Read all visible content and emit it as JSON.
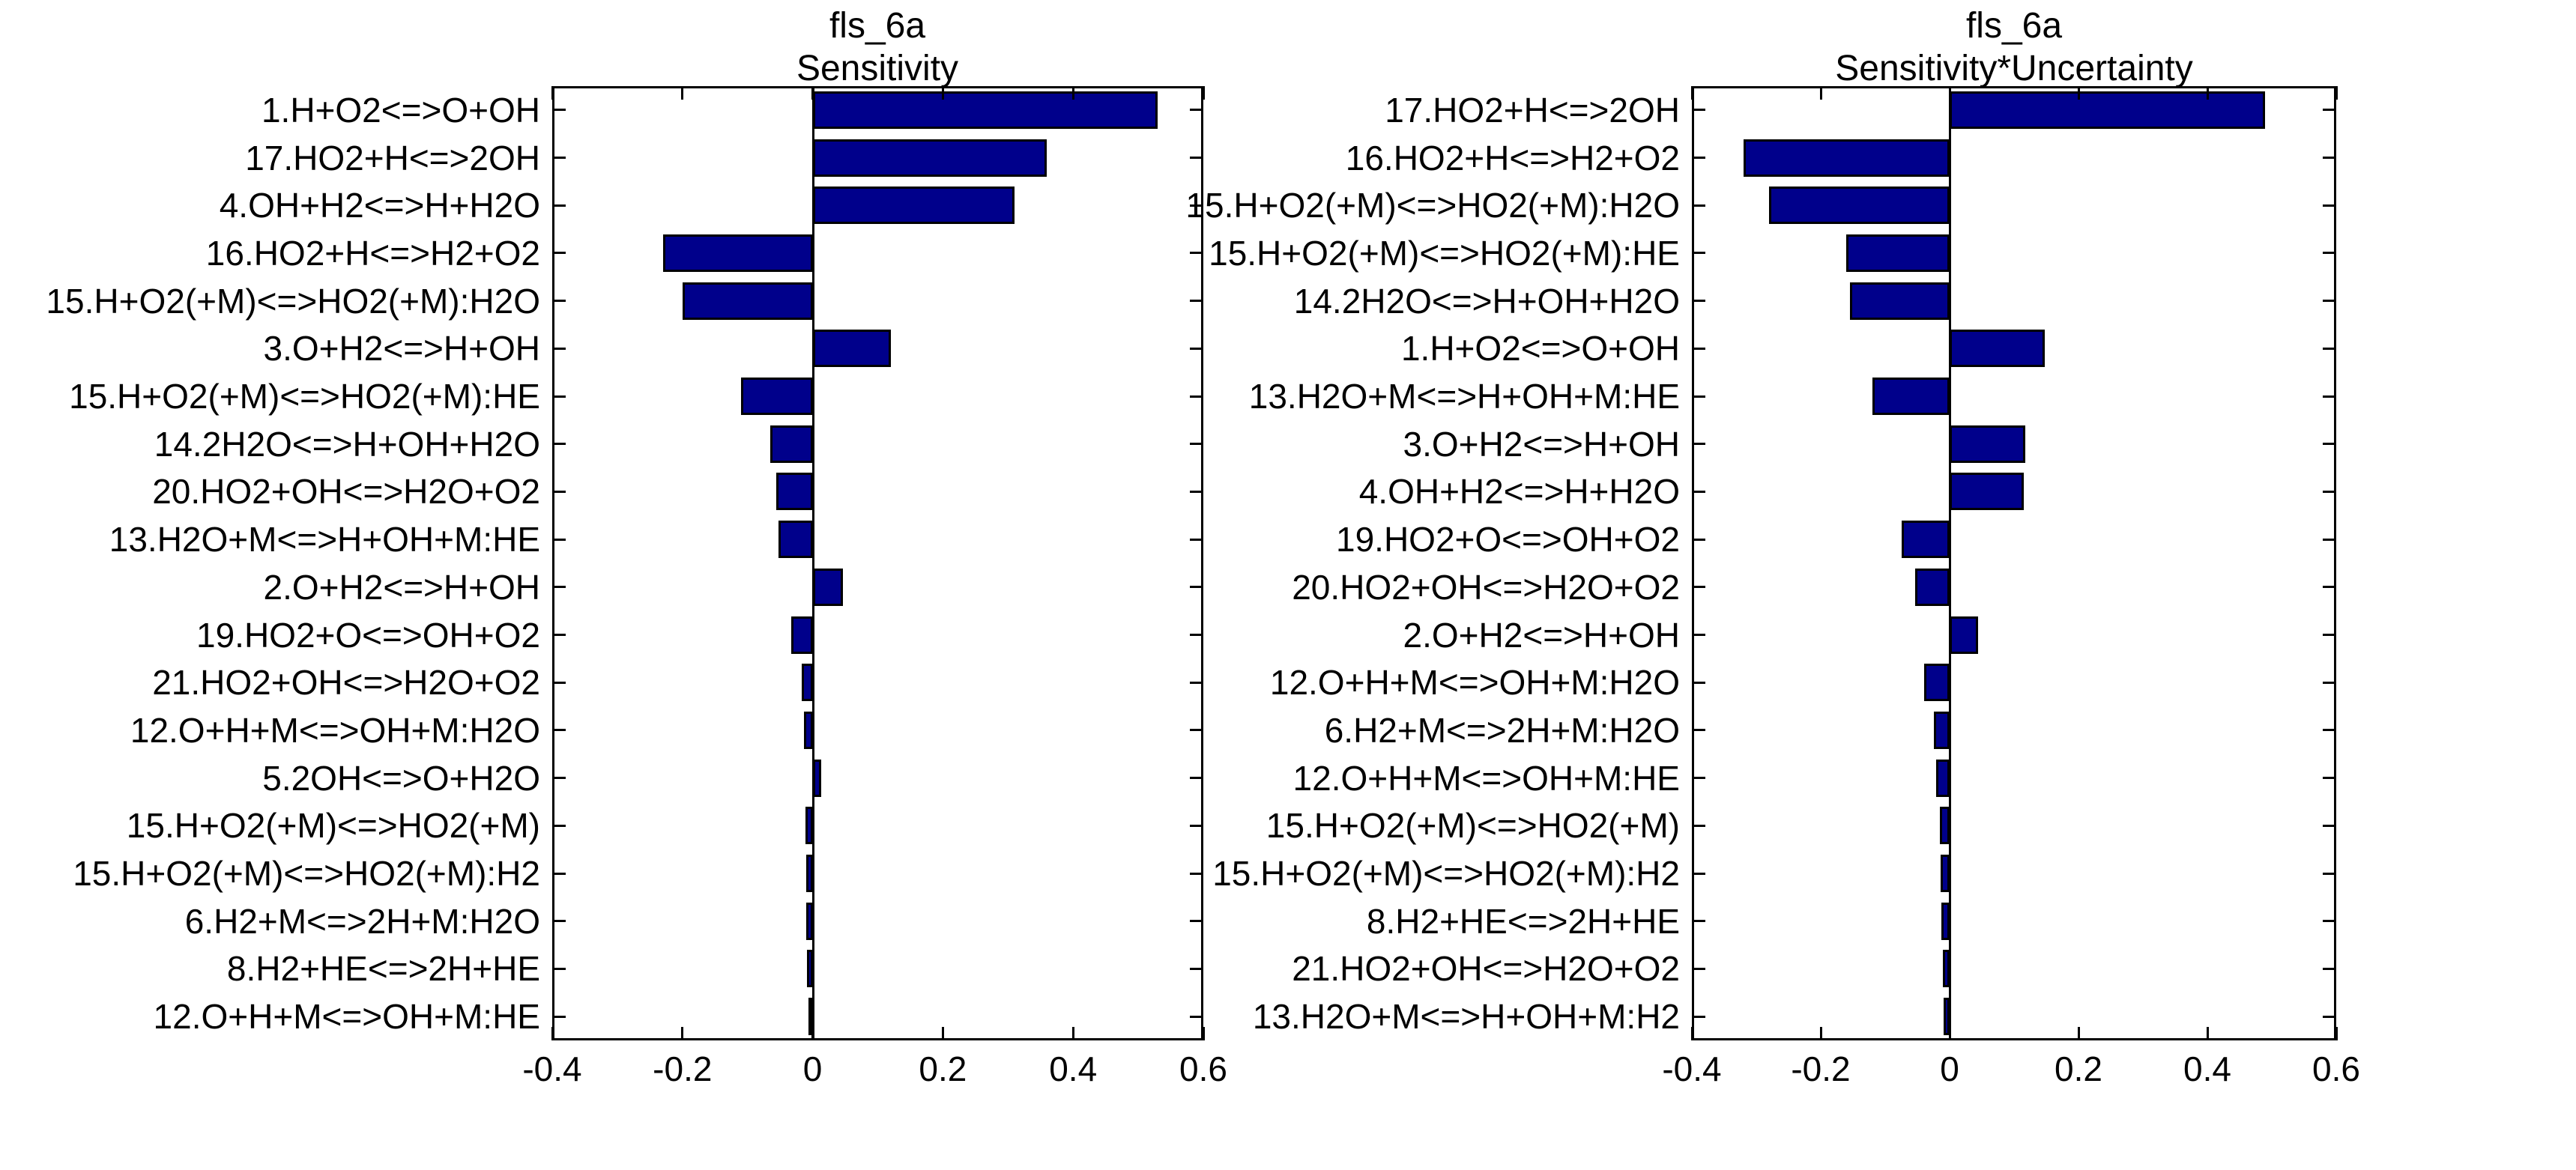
{
  "figure": {
    "background": "#ffffff",
    "bar_color": "#00008B",
    "axis_color": "#000000"
  },
  "chart_data": [
    {
      "type": "bar",
      "orientation": "horizontal",
      "title_line1": "fls_6a",
      "title_line2": "Sensitivity",
      "xlabel": "",
      "ylabel": "",
      "xlim": [
        -0.4,
        0.6
      ],
      "xtick_labels": [
        "-0.4",
        "-0.2",
        "0",
        "0.2",
        "0.4",
        "0.6"
      ],
      "xtick_values": [
        -0.4,
        -0.2,
        0,
        0.2,
        0.4,
        0.6
      ],
      "grid": false,
      "legend": "none",
      "categories": [
        "1.H+O2<=>O+OH",
        "17.HO2+H<=>2OH",
        "4.OH+H2<=>H+H2O",
        "16.HO2+H<=>H2+O2",
        "15.H+O2(+M)<=>HO2(+M):H2O",
        "3.O+H2<=>H+OH",
        "15.H+O2(+M)<=>HO2(+M):HE",
        "14.2H2O<=>H+OH+H2O",
        "20.HO2+OH<=>H2O+O2",
        "13.H2O+M<=>H+OH+M:HE",
        "2.O+H2<=>H+OH",
        "19.HO2+O<=>OH+O2",
        "21.HO2+OH<=>H2O+O2",
        "12.O+H+M<=>OH+M:H2O",
        "5.2OH<=>O+H2O",
        "15.H+O2(+M)<=>HO2(+M)",
        "15.H+O2(+M)<=>HO2(+M):H2",
        "6.H2+M<=>2H+M:H2O",
        "8.H2+HE<=>2H+HE",
        "12.O+H+M<=>OH+M:HE"
      ],
      "values": [
        0.53,
        0.36,
        0.31,
        -0.23,
        -0.2,
        0.12,
        -0.11,
        -0.065,
        -0.056,
        -0.053,
        0.047,
        -0.033,
        -0.017,
        -0.013,
        0.013,
        -0.011,
        -0.01,
        -0.01,
        -0.009,
        -0.007
      ]
    },
    {
      "type": "bar",
      "orientation": "horizontal",
      "title_line1": "fls_6a",
      "title_line2": "Sensitivity*Uncertainty",
      "xlabel": "",
      "ylabel": "",
      "xlim": [
        -0.4,
        0.6
      ],
      "xtick_labels": [
        "-0.4",
        "-0.2",
        "0",
        "0.2",
        "0.4",
        "0.6"
      ],
      "xtick_values": [
        -0.4,
        -0.2,
        0,
        0.2,
        0.4,
        0.6
      ],
      "grid": false,
      "legend": "none",
      "categories": [
        "17.HO2+H<=>2OH",
        "16.HO2+H<=>H2+O2",
        "15.H+O2(+M)<=>HO2(+M):H2O",
        "15.H+O2(+M)<=>HO2(+M):HE",
        "14.2H2O<=>H+OH+H2O",
        "1.H+O2<=>O+OH",
        "13.H2O+M<=>H+OH+M:HE",
        "3.O+H2<=>H+OH",
        "4.OH+H2<=>H+H2O",
        "19.HO2+O<=>OH+O2",
        "20.HO2+OH<=>H2O+O2",
        "2.O+H2<=>H+OH",
        "12.O+H+M<=>OH+M:H2O",
        "6.H2+M<=>2H+M:H2O",
        "12.O+H+M<=>OH+M:HE",
        "15.H+O2(+M)<=>HO2(+M)",
        "15.H+O2(+M)<=>HO2(+M):H2",
        "8.H2+HE<=>2H+HE",
        "21.HO2+OH<=>H2O+O2",
        "13.H2O+M<=>H+OH+M:H2"
      ],
      "values": [
        0.49,
        -0.32,
        -0.28,
        -0.16,
        -0.155,
        0.148,
        -0.12,
        0.117,
        0.115,
        -0.075,
        -0.053,
        0.044,
        -0.04,
        -0.024,
        -0.021,
        -0.015,
        -0.014,
        -0.013,
        -0.011,
        -0.009
      ]
    }
  ]
}
